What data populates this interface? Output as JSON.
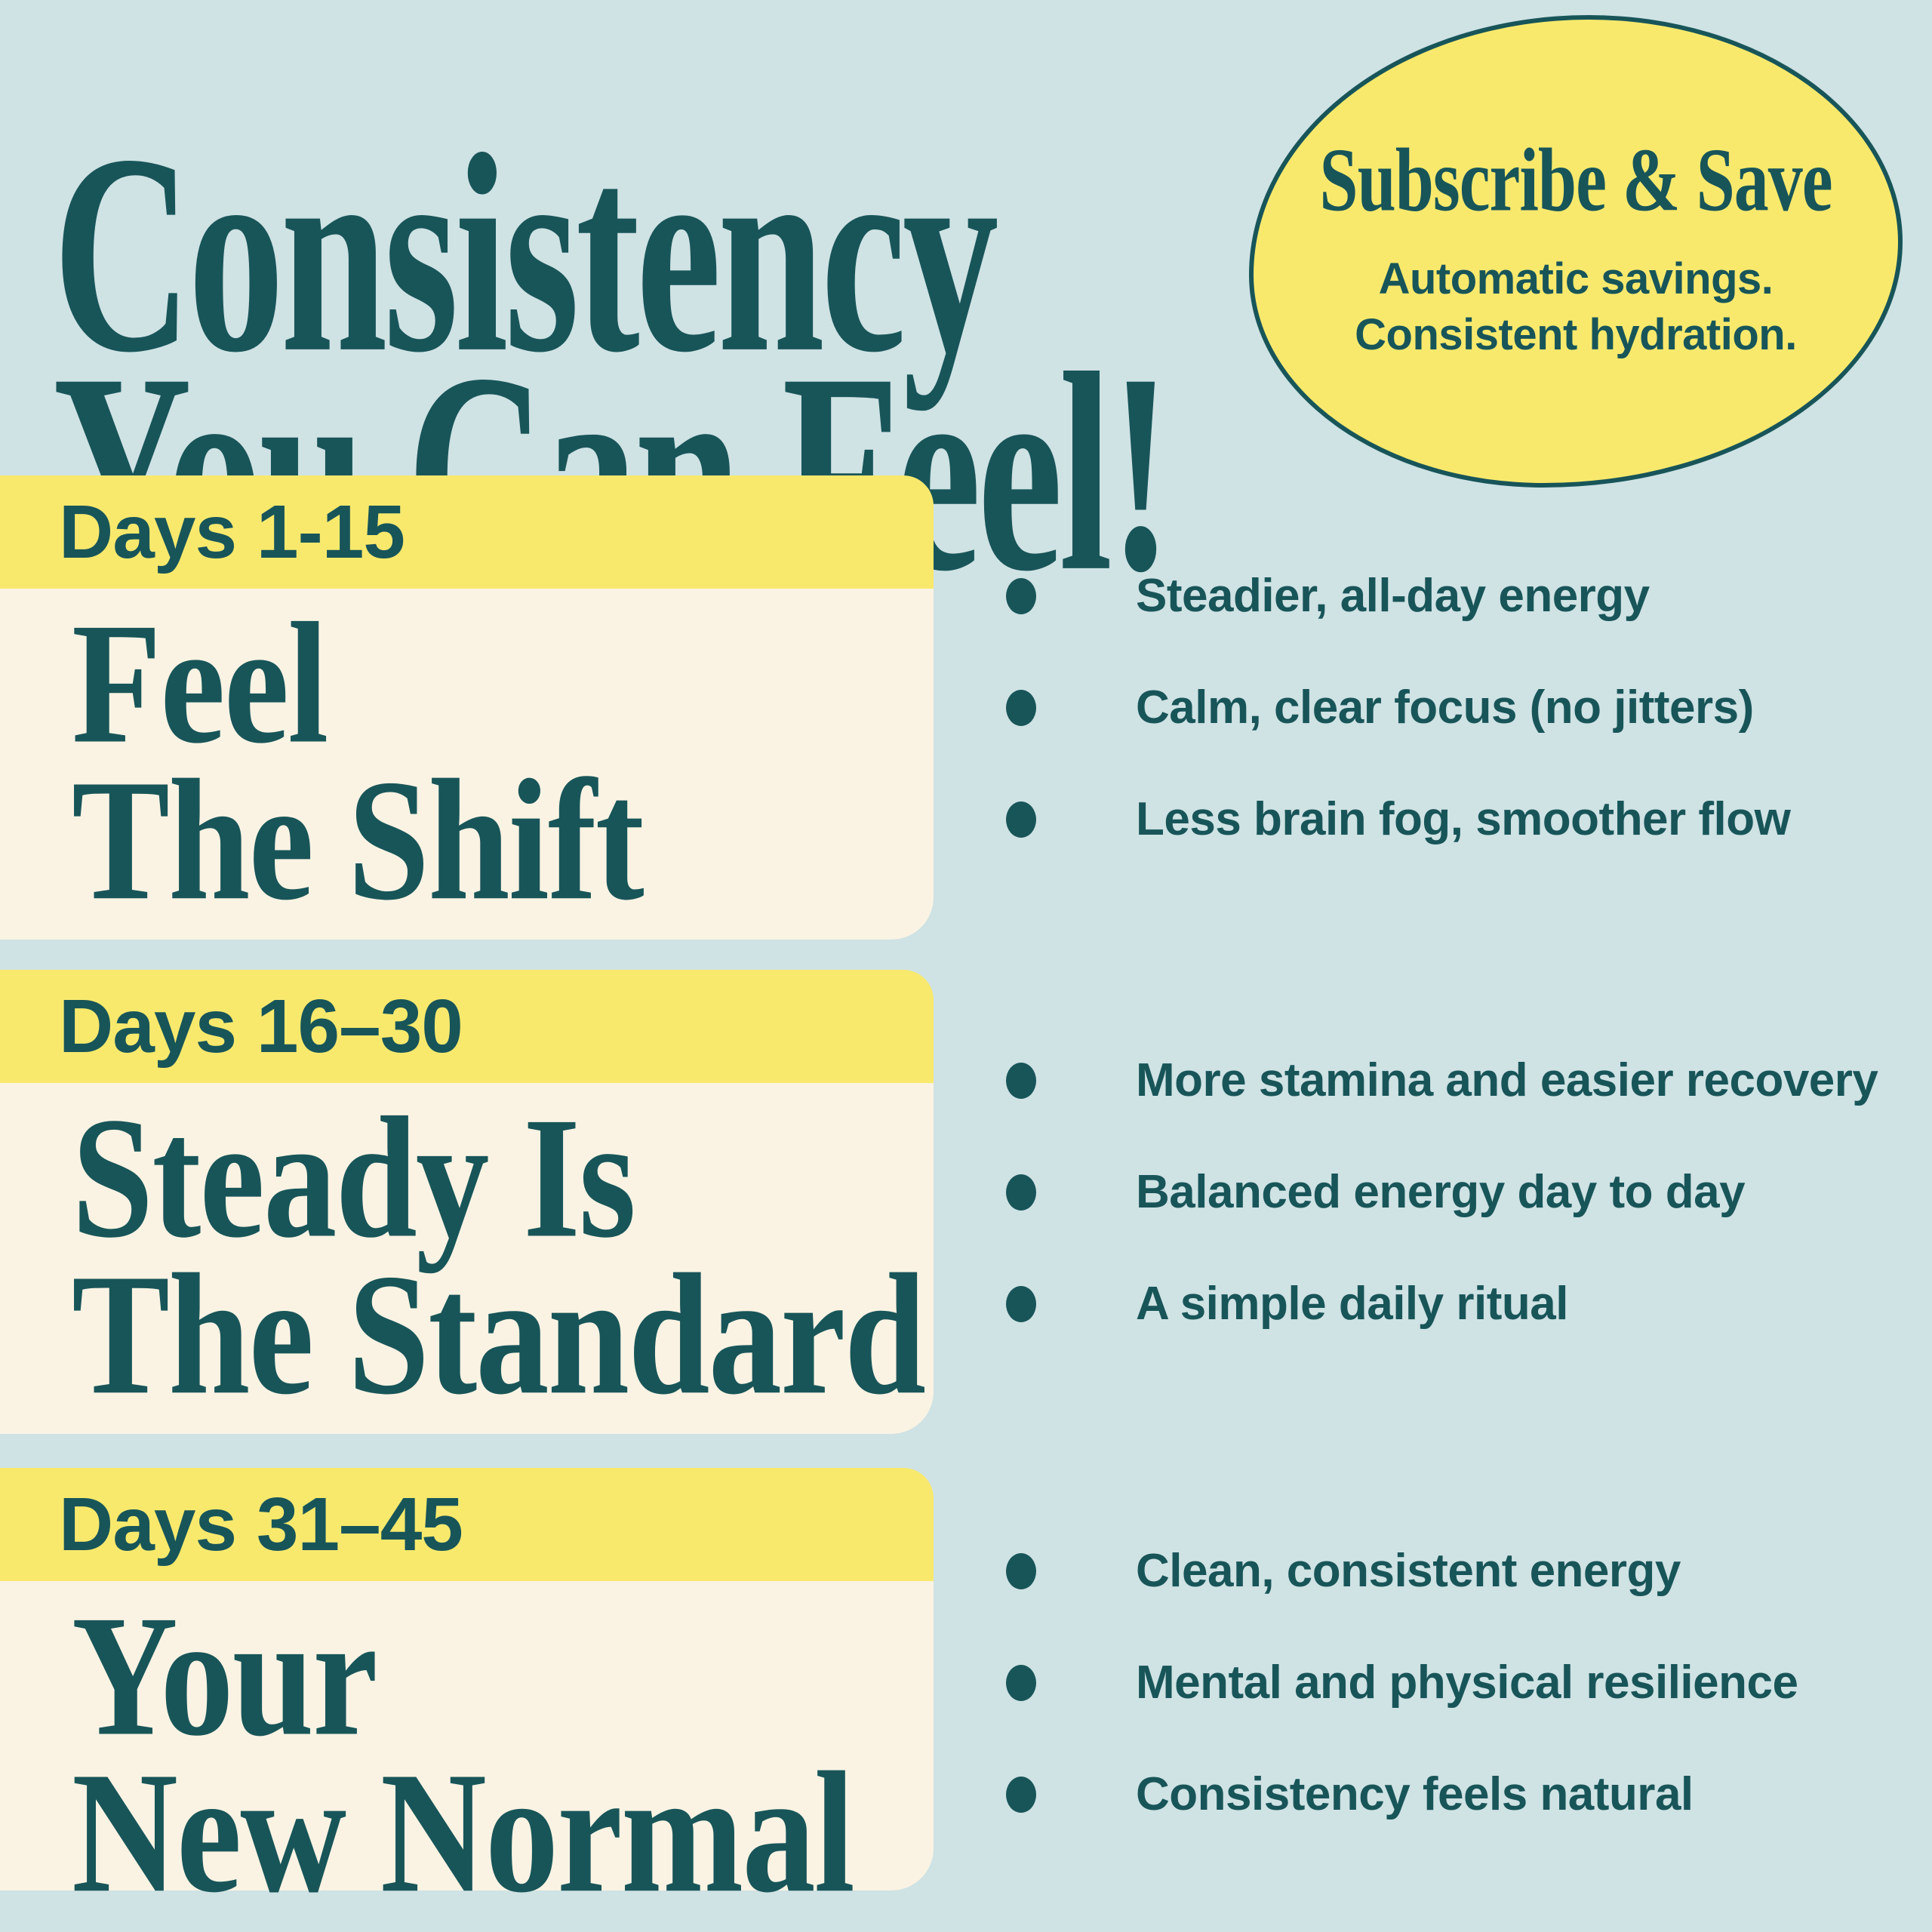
{
  "colors": {
    "background": "#cfe2e4",
    "teal": "#185559",
    "yellow": "#f8e96d",
    "cream": "#faf3e3"
  },
  "title": {
    "line1": "Consistency",
    "line2": "You Can Feel!"
  },
  "badge": {
    "title": "Subscribe & Save",
    "line1": "Automatic savings.",
    "line2": "Consistent hydration."
  },
  "sections": [
    {
      "label": "Days 1-15",
      "heading_line1": "Feel",
      "heading_line2": "The Shift",
      "bullets": [
        "Steadier, all-day energy",
        "Calm, clear focus (no jitters)",
        "Less brain fog, smoother flow"
      ]
    },
    {
      "label": "Days 16–30",
      "heading_line1": "Steady Is",
      "heading_line2": "The Standard",
      "bullets": [
        "More stamina and easier recovery",
        "Balanced energy day to day",
        "A simple daily ritual"
      ]
    },
    {
      "label": "Days 31–45",
      "heading_line1": "Your",
      "heading_line2": "New Normal",
      "bullets": [
        "Clean, consistent energy",
        "Mental and physical resilience",
        "Consistency feels natural"
      ]
    }
  ]
}
